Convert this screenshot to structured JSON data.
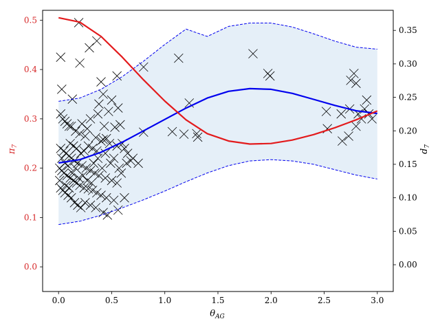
{
  "chart_data": {
    "type": "line",
    "title": "",
    "xlabel": "θ",
    "xlabel_sub": "AG",
    "ylabel_left": "π",
    "ylabel_left_sub": "7",
    "ylabel_right": "d",
    "ylabel_right_sub": "7",
    "xlim": [
      -0.15,
      3.15
    ],
    "ylim_left": [
      -0.05,
      0.52
    ],
    "ylim_right": [
      -0.04,
      0.38
    ],
    "x_ticks": [
      "0.0",
      "0.5",
      "1.0",
      "1.5",
      "2.0",
      "2.5",
      "3.0"
    ],
    "x_tick_values": [
      0,
      0.5,
      1.0,
      1.5,
      2.0,
      2.5,
      3.0
    ],
    "y_left_ticks": [
      "0.0",
      "0.1",
      "0.2",
      "0.3",
      "0.4",
      "0.5"
    ],
    "y_left_tick_values": [
      0,
      0.1,
      0.2,
      0.3,
      0.4,
      0.5
    ],
    "y_right_ticks": [
      "0.00",
      "0.05",
      "0.10",
      "0.15",
      "0.20",
      "0.25",
      "0.30",
      "0.35"
    ],
    "y_right_tick_values": [
      0,
      0.05,
      0.1,
      0.15,
      0.2,
      0.25,
      0.3,
      0.35
    ],
    "grid": false,
    "colors": {
      "red": "#e31a1c",
      "blue": "#0000ee",
      "band": "#dce9f5",
      "markers": "#000000",
      "left_axis_text": "#d62728"
    },
    "series": [
      {
        "axis": "left",
        "style": "solid",
        "color": "#e31a1c",
        "x": [
          0,
          0.2,
          0.4,
          0.6,
          0.8,
          1.0,
          1.2,
          1.4,
          1.6,
          1.8,
          2.0,
          2.2,
          2.4,
          2.6,
          2.8,
          3.0
        ],
        "y": [
          0.505,
          0.496,
          0.467,
          0.425,
          0.379,
          0.336,
          0.298,
          0.27,
          0.255,
          0.249,
          0.25,
          0.257,
          0.268,
          0.282,
          0.298,
          0.316
        ]
      },
      {
        "axis": "right",
        "style": "solid",
        "color": "#0000ee",
        "x": [
          0,
          0.2,
          0.4,
          0.6,
          0.8,
          1.0,
          1.2,
          1.4,
          1.6,
          1.8,
          2.0,
          2.2,
          2.4,
          2.6,
          2.8,
          3.0
        ],
        "y": [
          0.152,
          0.157,
          0.168,
          0.183,
          0.2,
          0.217,
          0.234,
          0.249,
          0.259,
          0.263,
          0.262,
          0.256,
          0.247,
          0.238,
          0.23,
          0.226
        ]
      },
      {
        "axis": "right",
        "style": "dashed",
        "color": "#0000ee",
        "x": [
          0,
          0.2,
          0.4,
          0.6,
          0.8,
          1.0,
          1.2,
          1.4,
          1.6,
          1.8,
          2.0,
          2.2,
          2.4,
          2.6,
          2.8,
          3.0
        ],
        "y": [
          0.244,
          0.249,
          0.262,
          0.281,
          0.304,
          0.329,
          0.352,
          0.341,
          0.356,
          0.361,
          0.361,
          0.355,
          0.345,
          0.334,
          0.325,
          0.322
        ]
      },
      {
        "axis": "right",
        "style": "dashed",
        "color": "#0000ee",
        "x": [
          0,
          0.2,
          0.4,
          0.6,
          0.8,
          1.0,
          1.2,
          1.4,
          1.6,
          1.8,
          2.0,
          2.2,
          2.4,
          2.6,
          2.8,
          3.0
        ],
        "y": [
          0.06,
          0.065,
          0.074,
          0.085,
          0.097,
          0.11,
          0.124,
          0.137,
          0.148,
          0.155,
          0.157,
          0.155,
          0.15,
          0.142,
          0.134,
          0.128
        ]
      }
    ],
    "scatter": {
      "axis": "left",
      "marker": "x",
      "color": "#000000",
      "points": [
        [
          0.02,
          0.425
        ],
        [
          0.03,
          0.36
        ],
        [
          0.19,
          0.495
        ],
        [
          0.2,
          0.413
        ],
        [
          0.29,
          0.444
        ],
        [
          0.36,
          0.458
        ],
        [
          0.4,
          0.375
        ],
        [
          0.8,
          0.405
        ],
        [
          1.13,
          0.423
        ],
        [
          1.83,
          0.432
        ],
        [
          1.97,
          0.392
        ],
        [
          1.99,
          0.387
        ],
        [
          0.55,
          0.387
        ],
        [
          0.42,
          0.35
        ],
        [
          0.13,
          0.34
        ],
        [
          0.38,
          0.33
        ],
        [
          0.5,
          0.338
        ],
        [
          0.56,
          0.322
        ],
        [
          0.37,
          0.31
        ],
        [
          0.47,
          0.315
        ],
        [
          0.3,
          0.3
        ],
        [
          0.22,
          0.29
        ],
        [
          0.1,
          0.285
        ],
        [
          0.27,
          0.28
        ],
        [
          0.43,
          0.285
        ],
        [
          0.53,
          0.283
        ],
        [
          0.58,
          0.288
        ],
        [
          0.8,
          0.273
        ],
        [
          1.07,
          0.274
        ],
        [
          1.18,
          0.269
        ],
        [
          1.23,
          0.332
        ],
        [
          1.3,
          0.27
        ],
        [
          1.31,
          0.263
        ],
        [
          0.02,
          0.31
        ],
        [
          0.04,
          0.3
        ],
        [
          0.06,
          0.295
        ],
        [
          0.08,
          0.29
        ],
        [
          0.12,
          0.285
        ],
        [
          0.16,
          0.275
        ],
        [
          0.2,
          0.27
        ],
        [
          0.25,
          0.265
        ],
        [
          0.35,
          0.262
        ],
        [
          0.42,
          0.258
        ],
        [
          0.48,
          0.25
        ],
        [
          0.55,
          0.245
        ],
        [
          0.6,
          0.25
        ],
        [
          0.62,
          0.24
        ],
        [
          0.65,
          0.23
        ],
        [
          0.7,
          0.22
        ],
        [
          0.75,
          0.21
        ],
        [
          0.02,
          0.24
        ],
        [
          0.05,
          0.235
        ],
        [
          0.07,
          0.23
        ],
        [
          0.1,
          0.225
        ],
        [
          0.12,
          0.22
        ],
        [
          0.15,
          0.215
        ],
        [
          0.18,
          0.21
        ],
        [
          0.22,
          0.205
        ],
        [
          0.26,
          0.2
        ],
        [
          0.3,
          0.195
        ],
        [
          0.34,
          0.19
        ],
        [
          0.38,
          0.185
        ],
        [
          0.44,
          0.18
        ],
        [
          0.5,
          0.175
        ],
        [
          0.55,
          0.17
        ],
        [
          0.01,
          0.2
        ],
        [
          0.03,
          0.195
        ],
        [
          0.05,
          0.19
        ],
        [
          0.08,
          0.185
        ],
        [
          0.11,
          0.18
        ],
        [
          0.14,
          0.175
        ],
        [
          0.17,
          0.17
        ],
        [
          0.2,
          0.165
        ],
        [
          0.24,
          0.16
        ],
        [
          0.28,
          0.158
        ],
        [
          0.32,
          0.155
        ],
        [
          0.36,
          0.15
        ],
        [
          0.4,
          0.145
        ],
        [
          0.45,
          0.14
        ],
        [
          0.52,
          0.135
        ],
        [
          0.62,
          0.14
        ],
        [
          0.02,
          0.16
        ],
        [
          0.04,
          0.155
        ],
        [
          0.06,
          0.15
        ],
        [
          0.09,
          0.145
        ],
        [
          0.12,
          0.14
        ],
        [
          0.15,
          0.13
        ],
        [
          0.18,
          0.125
        ],
        [
          0.21,
          0.12
        ],
        [
          0.25,
          0.13
        ],
        [
          0.3,
          0.125
        ],
        [
          0.35,
          0.12
        ],
        [
          0.42,
          0.11
        ],
        [
          0.46,
          0.105
        ],
        [
          0.56,
          0.115
        ],
        [
          0.01,
          0.175
        ],
        [
          0.07,
          0.165
        ],
        [
          0.1,
          0.16
        ],
        [
          0.13,
          0.19
        ],
        [
          0.16,
          0.2
        ],
        [
          0.19,
          0.18
        ],
        [
          0.23,
          0.185
        ],
        [
          0.27,
          0.175
        ],
        [
          0.31,
          0.17
        ],
        [
          0.33,
          0.21
        ],
        [
          0.37,
          0.22
        ],
        [
          0.41,
          0.2
        ],
        [
          0.44,
          0.23
        ],
        [
          0.49,
          0.21
        ],
        [
          0.52,
          0.22
        ],
        [
          0.57,
          0.2
        ],
        [
          0.59,
          0.19
        ],
        [
          0.64,
          0.21
        ],
        [
          0.68,
          0.215
        ],
        [
          0.03,
          0.22
        ],
        [
          0.06,
          0.21
        ],
        [
          0.09,
          0.205
        ],
        [
          0.11,
          0.25
        ],
        [
          0.14,
          0.245
        ],
        [
          0.17,
          0.24
        ],
        [
          0.21,
          0.23
        ],
        [
          0.24,
          0.235
        ],
        [
          0.28,
          0.245
        ],
        [
          0.32,
          0.24
        ],
        [
          0.36,
          0.235
        ],
        [
          0.4,
          0.255
        ],
        [
          0.45,
          0.26
        ],
        [
          2.52,
          0.315
        ],
        [
          2.53,
          0.28
        ],
        [
          2.66,
          0.31
        ],
        [
          2.67,
          0.255
        ],
        [
          2.73,
          0.265
        ],
        [
          2.74,
          0.32
        ],
        [
          2.75,
          0.378
        ],
        [
          2.78,
          0.392
        ],
        [
          2.8,
          0.372
        ],
        [
          2.8,
          0.285
        ],
        [
          2.82,
          0.31
        ],
        [
          2.85,
          0.3
        ],
        [
          2.88,
          0.32
        ],
        [
          2.9,
          0.338
        ],
        [
          2.92,
          0.31
        ],
        [
          2.95,
          0.3
        ]
      ]
    }
  }
}
